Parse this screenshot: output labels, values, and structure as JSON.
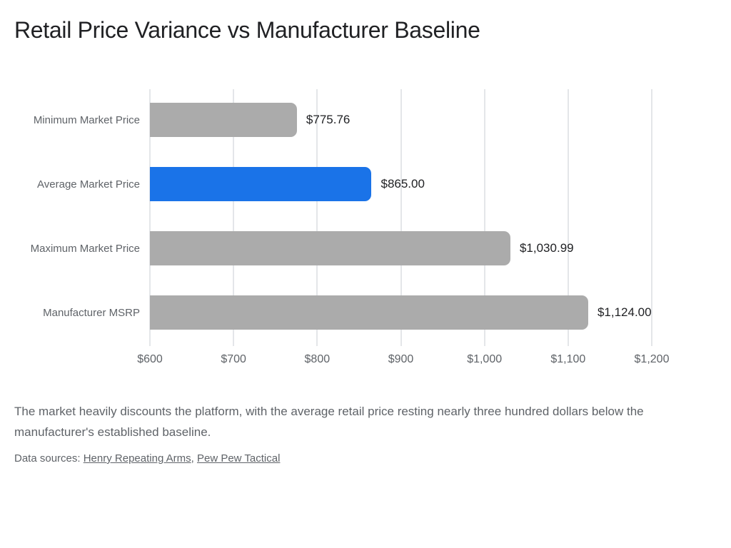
{
  "header": {
    "title": "Retail Price Variance vs Manufacturer Baseline"
  },
  "chart_data": {
    "type": "bar",
    "orientation": "horizontal",
    "title": "Retail Price Variance vs Manufacturer Baseline",
    "categories": [
      "Minimum Market Price",
      "Average Market Price",
      "Maximum Market Price",
      "Manufacturer MSRP"
    ],
    "values": [
      775.76,
      865.0,
      1030.99,
      1124.0
    ],
    "value_labels": [
      "$775.76",
      "$865.00",
      "$1,030.99",
      "$1,124.00"
    ],
    "bar_colors": [
      "#ababab",
      "#1a73e8",
      "#ababab",
      "#ababab"
    ],
    "xlabel": "",
    "ylabel": "",
    "xlim": [
      600,
      1200
    ],
    "x_tick_values": [
      600,
      700,
      800,
      900,
      1000,
      1100,
      1200
    ],
    "x_ticks": [
      "$600",
      "$700",
      "$800",
      "$900",
      "$1,000",
      "$1,100",
      "$1,200"
    ],
    "grid": "vertical",
    "legend": "none",
    "colors": {
      "highlight": "#1a73e8",
      "default": "#ababab",
      "gridline": "#e4e6e9"
    }
  },
  "caption": {
    "text": "The market heavily discounts the platform, with the average retail price resting nearly three hundred dollars below the manufacturer's established baseline."
  },
  "sources": {
    "prefix": "Data sources: ",
    "separator": ", ",
    "links": [
      "Henry Repeating Arms",
      "Pew Pew Tactical"
    ]
  }
}
